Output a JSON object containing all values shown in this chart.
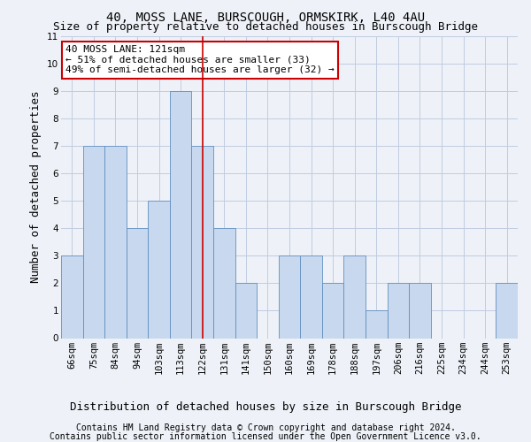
{
  "title1": "40, MOSS LANE, BURSCOUGH, ORMSKIRK, L40 4AU",
  "title2": "Size of property relative to detached houses in Burscough Bridge",
  "xlabel": "Distribution of detached houses by size in Burscough Bridge",
  "ylabel": "Number of detached properties",
  "categories": [
    "66sqm",
    "75sqm",
    "84sqm",
    "94sqm",
    "103sqm",
    "113sqm",
    "122sqm",
    "131sqm",
    "141sqm",
    "150sqm",
    "160sqm",
    "169sqm",
    "178sqm",
    "188sqm",
    "197sqm",
    "206sqm",
    "216sqm",
    "225sqm",
    "234sqm",
    "244sqm",
    "253sqm"
  ],
  "values": [
    3,
    7,
    7,
    4,
    5,
    9,
    7,
    4,
    2,
    0,
    3,
    3,
    2,
    3,
    1,
    2,
    2,
    0,
    0,
    0,
    2
  ],
  "highlight_index": 6,
  "bar_color": "#c8d8ee",
  "bar_edgecolor": "#6090c0",
  "highlight_line_color": "#cc0000",
  "annotation_text": "40 MOSS LANE: 121sqm\n← 51% of detached houses are smaller (33)\n49% of semi-detached houses are larger (32) →",
  "annotation_box_facecolor": "white",
  "annotation_box_edgecolor": "#cc0000",
  "ylim": [
    0,
    11
  ],
  "yticks": [
    0,
    1,
    2,
    3,
    4,
    5,
    6,
    7,
    8,
    9,
    10,
    11
  ],
  "footer1": "Contains HM Land Registry data © Crown copyright and database right 2024.",
  "footer2": "Contains public sector information licensed under the Open Government Licence v3.0.",
  "background_color": "#eef2f8",
  "grid_color": "#c0cce0",
  "title_fontsize": 10,
  "subtitle_fontsize": 9,
  "ylabel_fontsize": 9,
  "xlabel_fontsize": 9,
  "tick_fontsize": 7.5,
  "annotation_fontsize": 8,
  "footer_fontsize": 7
}
